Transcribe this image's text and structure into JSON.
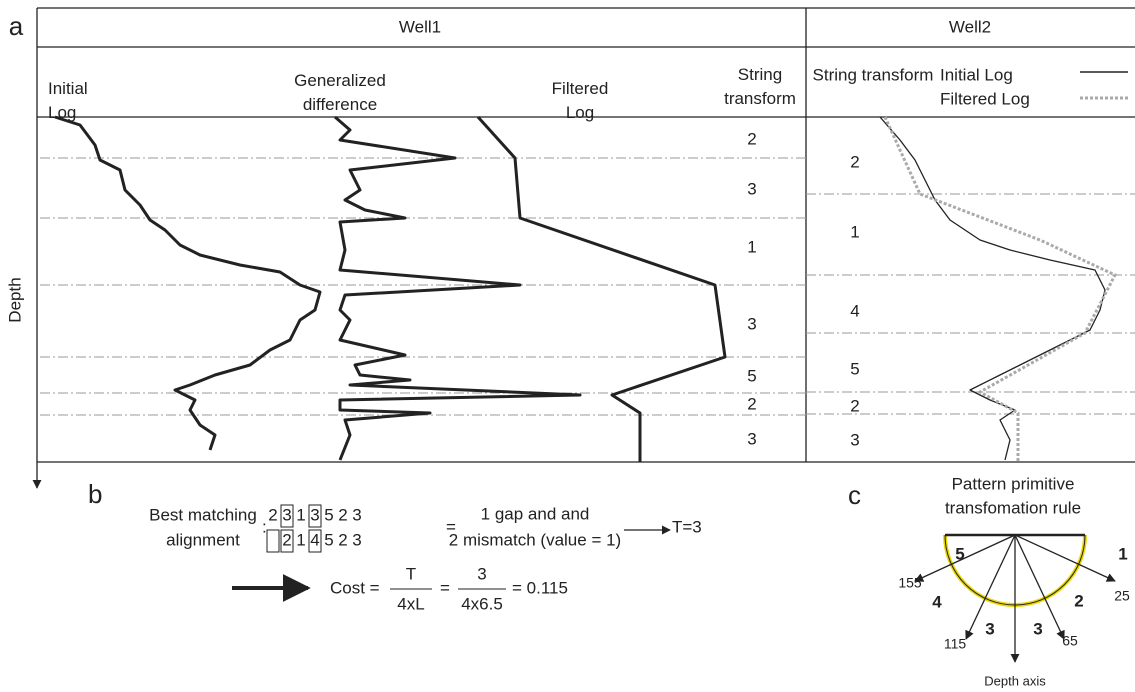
{
  "panel_a": {
    "label": "a",
    "depth_label": "Depth",
    "well1": {
      "title": "Well1",
      "headers": [
        "Initial Log",
        "Generalized difference",
        "Filtered Log",
        "String transform"
      ],
      "string_transform": [
        2,
        3,
        1,
        3,
        5,
        2,
        3
      ]
    },
    "well2": {
      "title": "Well2",
      "header": "String transform",
      "legend": [
        "Initial Log",
        "Filtered Log"
      ],
      "string_transform": [
        2,
        1,
        4,
        5,
        2,
        3
      ]
    }
  },
  "panel_b": {
    "label": "b",
    "caption": [
      "Best matching",
      "alignment"
    ],
    "colon": ":",
    "row1": [
      2,
      3,
      1,
      3,
      5,
      2,
      3
    ],
    "row2": [
      2,
      1,
      4,
      5,
      2,
      3
    ],
    "equals": "=",
    "result": [
      "1 gap and and",
      "2 mismatch (value = 1)"
    ],
    "t": "T=3",
    "cost_prefix": "Cost =",
    "frac1": [
      "T",
      "4xL"
    ],
    "frac2": [
      "3",
      "4x6.5"
    ],
    "eq2": "=",
    "cost_value": "= 0.115"
  },
  "panel_c": {
    "label": "c",
    "title": [
      "Pattern primitive",
      "transfomation rule"
    ],
    "codes": [
      5,
      4,
      3,
      3,
      2,
      1
    ],
    "angles": [
      155,
      115,
      65,
      25
    ],
    "axis_label": "Depth axis"
  }
}
